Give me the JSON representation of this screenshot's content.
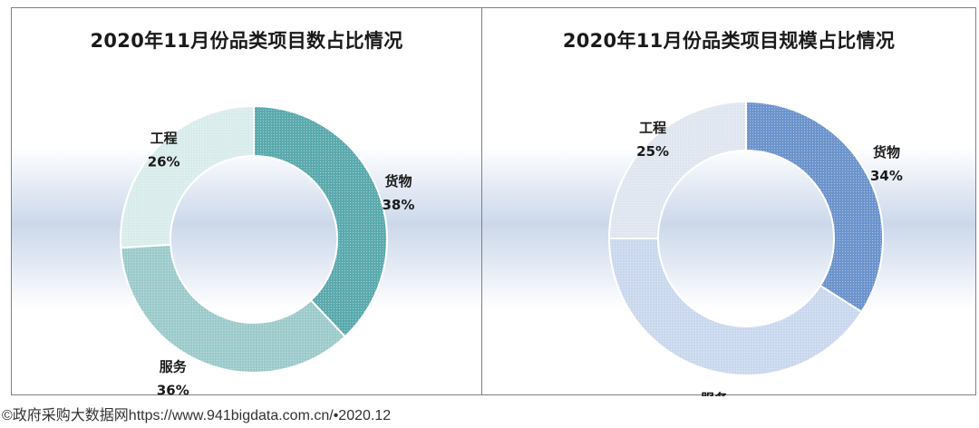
{
  "footer": "©政府采购大数据网https://www.941bigdata.com.cn/•2020.12",
  "chart_data": [
    {
      "type": "pie",
      "title": "2020年11月份品类项目数占比情况",
      "categories": [
        "货物",
        "服务",
        "工程"
      ],
      "values": [
        38,
        36,
        26
      ],
      "value_suffix": "%",
      "colors": [
        "#5aa9ad",
        "#9ccacb",
        "#d9ecec"
      ],
      "start_angle_deg": 0,
      "donut": true
    },
    {
      "type": "pie",
      "title": "2020年11月份品类项目规模占比情况",
      "categories": [
        "货物",
        "服务",
        "工程"
      ],
      "values": [
        34,
        41,
        25
      ],
      "value_suffix": "%",
      "colors": [
        "#6b93cc",
        "#c9d8ee",
        "#dfe6f0"
      ],
      "start_angle_deg": 0,
      "donut": true
    }
  ]
}
